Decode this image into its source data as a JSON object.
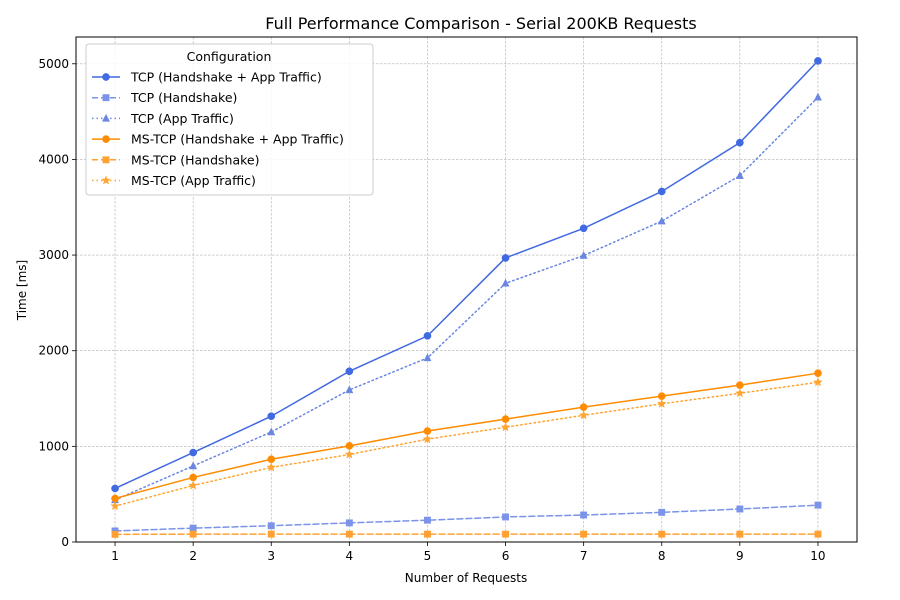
{
  "chart_data": {
    "type": "line",
    "title": "Full Performance Comparison - Serial 200KB Requests",
    "xlabel": "Number of Requests",
    "ylabel": "Time [ms]",
    "x": [
      1,
      2,
      3,
      4,
      5,
      6,
      7,
      8,
      9,
      10
    ],
    "xlim": [
      0.5,
      10.5
    ],
    "ylim": [
      0,
      5280
    ],
    "yticks": [
      0,
      1000,
      2000,
      3000,
      4000,
      5000
    ],
    "grid": true,
    "legend": {
      "title": "Configuration",
      "placement": "top-left"
    },
    "series": [
      {
        "name": "TCP (Handshake + App Traffic)",
        "color": "#4169E1",
        "linestyle": "solid",
        "marker": "circle",
        "values": [
          560,
          935,
          1315,
          1785,
          2155,
          2970,
          3280,
          3665,
          4175,
          5030
        ]
      },
      {
        "name": "TCP (Handshake)",
        "color": "#7B93E8",
        "linestyle": "dashed",
        "marker": "square",
        "values": [
          115,
          145,
          170,
          200,
          228,
          262,
          282,
          310,
          345,
          385
        ]
      },
      {
        "name": "TCP (App Traffic)",
        "color": "#6A86E0",
        "linestyle": "dotted",
        "marker": "triangle",
        "values": [
          440,
          795,
          1150,
          1590,
          1925,
          2705,
          2995,
          3355,
          3830,
          4650
        ]
      },
      {
        "name": "MS-TCP (Handshake + App Traffic)",
        "color": "#FF8C00",
        "linestyle": "solid",
        "marker": "circle",
        "values": [
          455,
          675,
          865,
          1005,
          1160,
          1285,
          1410,
          1525,
          1640,
          1765
        ]
      },
      {
        "name": "MS-TCP (Handshake)",
        "color": "#FFA033",
        "linestyle": "dashed",
        "marker": "square",
        "values": [
          80,
          82,
          82,
          82,
          82,
          82,
          82,
          82,
          82,
          82
        ]
      },
      {
        "name": "MS-TCP (App Traffic)",
        "color": "#FFA533",
        "linestyle": "dotted",
        "marker": "star",
        "values": [
          375,
          590,
          780,
          915,
          1075,
          1200,
          1325,
          1445,
          1555,
          1670
        ]
      }
    ]
  }
}
